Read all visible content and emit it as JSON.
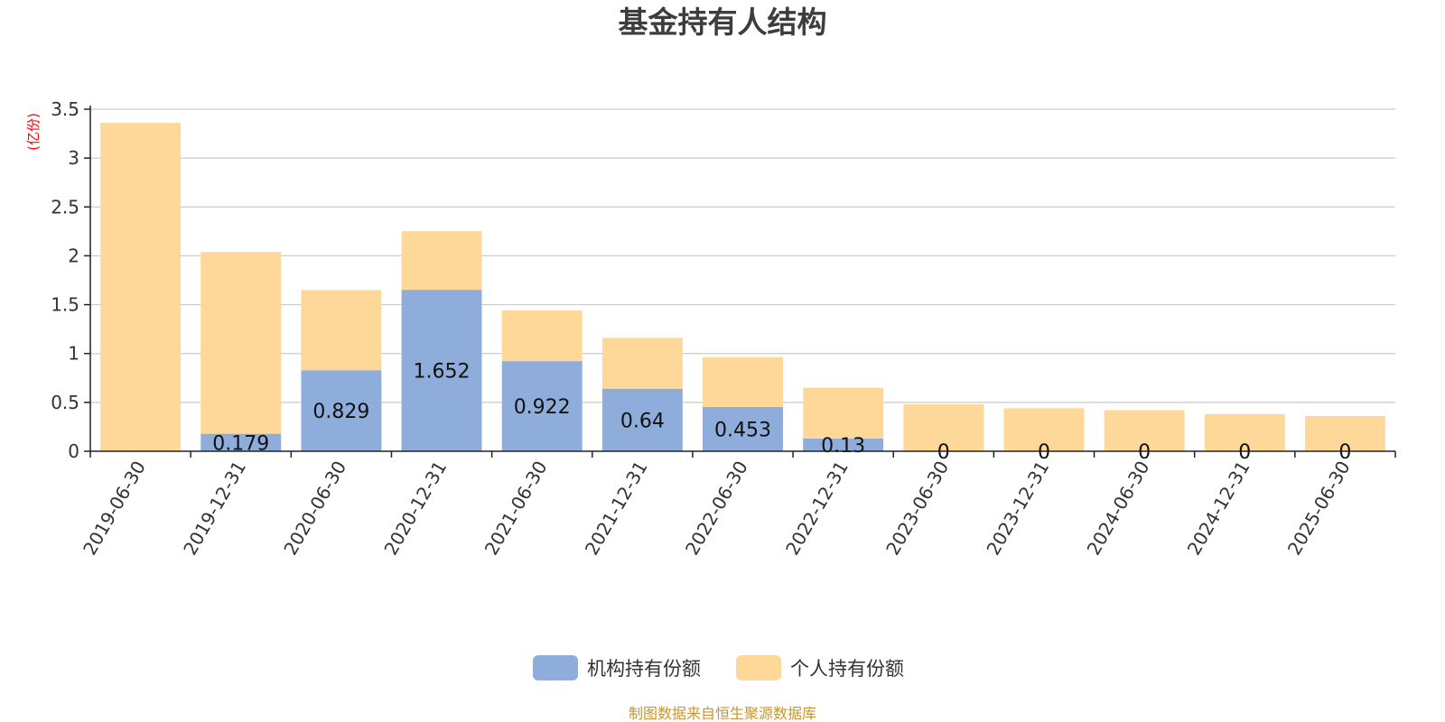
{
  "chart_data": {
    "type": "bar",
    "stacked": true,
    "title": "基金持有人结构",
    "unit_label": "(亿份)",
    "categories": [
      "2019-06-30",
      "2019-12-31",
      "2020-06-30",
      "2020-12-31",
      "2021-06-30",
      "2021-12-31",
      "2022-06-30",
      "2022-12-31",
      "2023-06-30",
      "2023-12-31",
      "2024-06-30",
      "2024-12-31",
      "2025-06-30"
    ],
    "series": [
      {
        "name": "机构持有份额",
        "color": "#8eadda",
        "values": [
          0,
          0.179,
          0.829,
          1.652,
          0.922,
          0.64,
          0.453,
          0.13,
          0,
          0,
          0,
          0,
          0
        ],
        "labels": [
          "",
          "0.179",
          "0.829",
          "1.652",
          "0.922",
          "0.64",
          "0.453",
          "0.13",
          "0",
          "0",
          "0",
          "0",
          "0"
        ]
      },
      {
        "name": "个人持有份额",
        "color": "#fed898",
        "values": [
          3.36,
          1.86,
          0.82,
          0.6,
          0.52,
          0.52,
          0.51,
          0.52,
          0.48,
          0.44,
          0.42,
          0.38,
          0.36
        ]
      }
    ],
    "ylim": [
      0,
      3.5
    ],
    "yticks": [
      "0",
      "0.5",
      "1",
      "1.5",
      "2",
      "2.5",
      "3",
      "3.5"
    ],
    "grid": true,
    "legend_position": "bottom-center",
    "source": "制图数据来自恒生聚源数据库",
    "colors": {
      "unit_label": "#ff0000",
      "source": "#c8962d",
      "grid": "#cccccc",
      "axis": "#222222"
    }
  }
}
